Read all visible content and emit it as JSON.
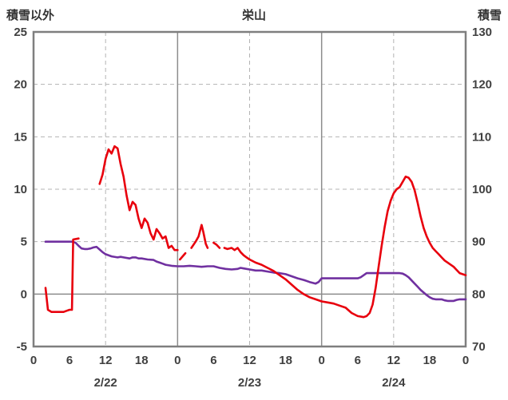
{
  "header": {
    "left_axis_title": "積雪以外",
    "chart_title": "栄山",
    "right_axis_title": "積雪"
  },
  "colors": {
    "red_line": "#e8000d",
    "purple_line": "#7030a0",
    "gridline": "#b3b3b3",
    "frame": "#7f7f7f",
    "text": "#404040"
  },
  "chart_data": {
    "type": "line",
    "title": "栄山",
    "legend": "none",
    "left_axis": {
      "label": "積雪以外",
      "min": -5,
      "max": 25,
      "ticks": [
        25,
        20,
        15,
        10,
        5,
        0,
        -5
      ]
    },
    "right_axis": {
      "label": "積雪",
      "min": 70,
      "max": 130,
      "ticks": [
        130,
        120,
        110,
        100,
        90,
        80,
        70
      ]
    },
    "x_axis": {
      "min": 0,
      "max": 72,
      "hour_ticks": [
        0,
        6,
        12,
        18,
        24,
        30,
        36,
        42,
        48,
        54,
        60,
        66,
        72
      ],
      "hour_tick_labels": [
        "0",
        "6",
        "12",
        "18",
        "0",
        "6",
        "12",
        "18",
        "0",
        "6",
        "12",
        "18",
        "0"
      ],
      "date_labels": [
        {
          "label": "2/22",
          "hour": 12
        },
        {
          "label": "2/23",
          "hour": 36
        },
        {
          "label": "2/24",
          "hour": 60
        }
      ],
      "dashed_gridlines_hours": [
        12,
        36,
        60
      ],
      "solid_gridlines_hours": [
        24,
        48
      ]
    },
    "series": [
      {
        "name": "purple",
        "axis": "right",
        "color": "#7030a0",
        "points": [
          [
            2,
            90
          ],
          [
            3,
            90
          ],
          [
            4,
            90
          ],
          [
            5,
            90
          ],
          [
            6,
            90
          ],
          [
            6.5,
            90
          ],
          [
            7,
            89.8
          ],
          [
            7.5,
            89.2
          ],
          [
            8,
            88.7
          ],
          [
            8.5,
            88.6
          ],
          [
            9,
            88.6
          ],
          [
            9.5,
            88.7
          ],
          [
            10,
            88.9
          ],
          [
            10.5,
            89.0
          ],
          [
            11,
            88.5
          ],
          [
            11.5,
            88.0
          ],
          [
            12,
            87.6
          ],
          [
            13,
            87.2
          ],
          [
            14,
            87.0
          ],
          [
            14.5,
            87.1
          ],
          [
            15,
            87.0
          ],
          [
            16,
            86.8
          ],
          [
            16.5,
            87.0
          ],
          [
            17,
            87.0
          ],
          [
            17.5,
            86.8
          ],
          [
            18,
            86.8
          ],
          [
            19,
            86.6
          ],
          [
            20,
            86.5
          ],
          [
            20.5,
            86.2
          ],
          [
            21,
            86.0
          ],
          [
            21.5,
            85.8
          ],
          [
            22,
            85.6
          ],
          [
            23,
            85.4
          ],
          [
            24,
            85.3
          ],
          [
            25,
            85.3
          ],
          [
            26,
            85.4
          ],
          [
            27,
            85.3
          ],
          [
            28,
            85.2
          ],
          [
            29,
            85.3
          ],
          [
            30,
            85.3
          ],
          [
            31,
            85.0
          ],
          [
            32,
            84.8
          ],
          [
            33,
            84.7
          ],
          [
            34,
            84.8
          ],
          [
            34.5,
            85.0
          ],
          [
            35,
            84.9
          ],
          [
            36,
            84.7
          ],
          [
            37,
            84.5
          ],
          [
            38,
            84.5
          ],
          [
            39,
            84.3
          ],
          [
            40,
            84.1
          ],
          [
            41,
            84.0
          ],
          [
            42,
            83.8
          ],
          [
            43,
            83.4
          ],
          [
            44,
            83.0
          ],
          [
            45,
            82.7
          ],
          [
            46,
            82.3
          ],
          [
            47,
            82.0
          ],
          [
            47.5,
            82.3
          ],
          [
            48,
            83.0
          ],
          [
            49,
            83.0
          ],
          [
            50,
            83.0
          ],
          [
            51,
            83.0
          ],
          [
            52,
            83.0
          ],
          [
            53,
            83.0
          ],
          [
            54,
            83.0
          ],
          [
            54.5,
            83.2
          ],
          [
            55,
            83.6
          ],
          [
            55.5,
            84.0
          ],
          [
            56,
            84.0
          ],
          [
            57,
            84.0
          ],
          [
            58,
            84.0
          ],
          [
            59,
            84.0
          ],
          [
            60,
            84.0
          ],
          [
            61,
            84.0
          ],
          [
            61.5,
            83.9
          ],
          [
            62,
            83.6
          ],
          [
            62.5,
            83.2
          ],
          [
            63,
            82.6
          ],
          [
            63.5,
            82.0
          ],
          [
            64,
            81.4
          ],
          [
            64.5,
            80.8
          ],
          [
            65,
            80.3
          ],
          [
            65.5,
            79.8
          ],
          [
            66,
            79.4
          ],
          [
            66.5,
            79.1
          ],
          [
            67,
            79.0
          ],
          [
            68,
            79.0
          ],
          [
            68.5,
            78.8
          ],
          [
            69,
            78.7
          ],
          [
            70,
            78.7
          ],
          [
            70.5,
            78.9
          ],
          [
            71,
            79.0
          ],
          [
            72,
            79.0
          ]
        ]
      },
      {
        "name": "red",
        "axis": "left",
        "color": "#e8000d",
        "points": [
          [
            2,
            0.6
          ],
          [
            2.4,
            -1.5
          ],
          [
            3,
            -1.7
          ],
          [
            4,
            -1.7
          ],
          [
            5,
            -1.7
          ],
          [
            5.5,
            -1.6
          ],
          [
            6,
            -1.5
          ],
          [
            6.4,
            -1.5
          ],
          [
            6.6,
            5.2
          ],
          [
            7.5,
            5.3
          ],
          null,
          [
            11,
            10.5
          ],
          [
            11.5,
            11.4
          ],
          [
            12,
            12.9
          ],
          [
            12.5,
            13.8
          ],
          [
            13,
            13.4
          ],
          [
            13.5,
            14.1
          ],
          [
            14,
            13.9
          ],
          [
            14.5,
            12.4
          ],
          [
            15,
            11.2
          ],
          [
            15.5,
            9.4
          ],
          [
            16,
            8.0
          ],
          [
            16.5,
            8.8
          ],
          [
            17,
            8.5
          ],
          [
            17.5,
            7.2
          ],
          [
            18,
            6.3
          ],
          [
            18.5,
            7.2
          ],
          [
            19,
            6.8
          ],
          [
            19.5,
            5.8
          ],
          [
            20,
            5.2
          ],
          [
            20.5,
            6.2
          ],
          [
            21,
            5.8
          ],
          [
            21.5,
            5.3
          ],
          [
            22,
            5.5
          ],
          [
            22.5,
            4.4
          ],
          [
            23,
            4.6
          ],
          [
            23.5,
            4.2
          ],
          [
            24,
            4.2
          ],
          null,
          [
            24.4,
            3.3
          ],
          [
            25.3,
            3.9
          ],
          null,
          [
            26.3,
            4.4
          ],
          [
            27,
            5.0
          ],
          [
            27.5,
            5.5
          ],
          [
            28,
            6.6
          ],
          [
            28.3,
            5.9
          ],
          [
            28.7,
            4.8
          ],
          [
            29,
            4.4
          ],
          null,
          [
            30,
            4.9
          ],
          [
            30.5,
            4.7
          ],
          [
            31,
            4.4
          ],
          null,
          [
            31.8,
            4.4
          ],
          [
            32.3,
            4.3
          ],
          [
            33,
            4.4
          ],
          [
            33.5,
            4.2
          ],
          [
            34,
            4.4
          ],
          [
            34.5,
            4.0
          ],
          [
            35,
            3.7
          ],
          [
            35.5,
            3.5
          ],
          [
            36,
            3.3
          ],
          [
            37,
            3.0
          ],
          [
            38,
            2.8
          ],
          [
            39,
            2.5
          ],
          [
            40,
            2.2
          ],
          [
            41,
            1.8
          ],
          [
            42,
            1.4
          ],
          [
            43,
            0.9
          ],
          [
            44,
            0.4
          ],
          [
            45,
            0.0
          ],
          [
            46,
            -0.3
          ],
          [
            47,
            -0.5
          ],
          [
            48,
            -0.7
          ],
          [
            49,
            -0.8
          ],
          [
            50,
            -0.9
          ],
          [
            51,
            -1.1
          ],
          [
            52,
            -1.3
          ],
          [
            53,
            -1.8
          ],
          [
            54,
            -2.1
          ],
          [
            55,
            -2.2
          ],
          [
            55.5,
            -2.1
          ],
          [
            56,
            -1.8
          ],
          [
            56.5,
            -1.0
          ],
          [
            57,
            0.6
          ],
          [
            57.5,
            2.6
          ],
          [
            58,
            4.6
          ],
          [
            58.5,
            6.4
          ],
          [
            59,
            7.9
          ],
          [
            59.5,
            8.9
          ],
          [
            60,
            9.6
          ],
          [
            60.5,
            10.0
          ],
          [
            61,
            10.2
          ],
          [
            61.5,
            10.7
          ],
          [
            62,
            11.2
          ],
          [
            62.5,
            11.1
          ],
          [
            63,
            10.7
          ],
          [
            63.5,
            9.9
          ],
          [
            64,
            8.7
          ],
          [
            64.5,
            7.4
          ],
          [
            65,
            6.3
          ],
          [
            65.5,
            5.5
          ],
          [
            66,
            4.9
          ],
          [
            66.5,
            4.4
          ],
          [
            67,
            4.1
          ],
          [
            67.5,
            3.8
          ],
          [
            68,
            3.5
          ],
          [
            68.5,
            3.2
          ],
          [
            69,
            3.0
          ],
          [
            70,
            2.6
          ],
          [
            70.5,
            2.3
          ],
          [
            71,
            2.0
          ],
          [
            72,
            1.8
          ]
        ]
      }
    ]
  }
}
